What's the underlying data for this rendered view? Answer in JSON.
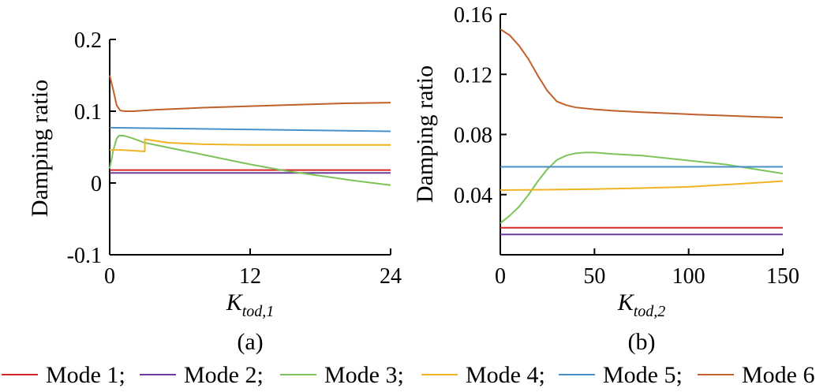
{
  "chart_data": [
    {
      "type": "line",
      "caption": "(a)",
      "xlabel": {
        "main": "K",
        "sub": "tod,1"
      },
      "ylabel": "Damping ratio",
      "xlim": [
        0,
        24
      ],
      "ylim": [
        -0.1,
        0.2
      ],
      "xticks": [
        0,
        12,
        24
      ],
      "xtick_labels": [
        "0",
        "12",
        "24"
      ],
      "yticks": [
        -0.1,
        0,
        0.1,
        0.2
      ],
      "ytick_labels": [
        "-0.1",
        "0",
        "0.1",
        "0.2"
      ],
      "series": [
        {
          "name": "Mode 1",
          "color": "#d62728",
          "x": [
            0,
            24
          ],
          "y": [
            0.018,
            0.018
          ]
        },
        {
          "name": "Mode 2",
          "color": "#6a3d9a",
          "x": [
            0,
            24
          ],
          "y": [
            0.014,
            0.014
          ]
        },
        {
          "name": "Mode 3",
          "color": "#7cc45a",
          "x": [
            0,
            0.3,
            0.6,
            0.8,
            1.2,
            2,
            3,
            6,
            9,
            12,
            15,
            18,
            21,
            24
          ],
          "y": [
            0.02,
            0.045,
            0.062,
            0.066,
            0.066,
            0.062,
            0.056,
            0.046,
            0.036,
            0.026,
            0.017,
            0.01,
            0.003,
            -0.003
          ]
        },
        {
          "name": "Mode 4",
          "color": "#f0b323",
          "x": [
            0,
            1,
            2,
            3,
            3.01,
            5,
            8,
            12,
            16,
            20,
            24
          ],
          "y": [
            0.046,
            0.046,
            0.045,
            0.044,
            0.061,
            0.056,
            0.054,
            0.053,
            0.053,
            0.053,
            0.053
          ]
        },
        {
          "name": "Mode 5",
          "color": "#4a90c8",
          "x": [
            0,
            24
          ],
          "y": [
            0.077,
            0.072
          ]
        },
        {
          "name": "Mode 6",
          "color": "#c1602b",
          "x": [
            0,
            0.3,
            0.6,
            0.9,
            1.3,
            2,
            4,
            8,
            12,
            16,
            20,
            24
          ],
          "y": [
            0.15,
            0.13,
            0.108,
            0.101,
            0.1,
            0.1,
            0.102,
            0.105,
            0.107,
            0.109,
            0.111,
            0.112
          ]
        }
      ]
    },
    {
      "type": "line",
      "caption": "(b)",
      "xlabel": {
        "main": "K",
        "sub": "tod,2"
      },
      "ylabel": "Damping ratio",
      "xlim": [
        0,
        150
      ],
      "ylim": [
        0,
        0.16
      ],
      "xticks": [
        0,
        50,
        100,
        150
      ],
      "xtick_labels": [
        "0",
        "50",
        "100",
        "150"
      ],
      "yticks": [
        0.04,
        0.08,
        0.12,
        0.16
      ],
      "ytick_labels": [
        "0.04",
        "0.08",
        "0.12",
        "0.16"
      ],
      "series": [
        {
          "name": "Mode 1",
          "color": "#d62728",
          "x": [
            0,
            150
          ],
          "y": [
            0.018,
            0.018
          ]
        },
        {
          "name": "Mode 2",
          "color": "#6a3d9a",
          "x": [
            0,
            150
          ],
          "y": [
            0.0135,
            0.0135
          ]
        },
        {
          "name": "Mode 3",
          "color": "#7cc45a",
          "x": [
            0,
            5,
            10,
            15,
            20,
            25,
            30,
            35,
            40,
            45,
            50,
            60,
            75,
            90,
            105,
            120,
            135,
            150
          ],
          "y": [
            0.021,
            0.026,
            0.032,
            0.04,
            0.049,
            0.057,
            0.063,
            0.066,
            0.0675,
            0.068,
            0.068,
            0.067,
            0.066,
            0.064,
            0.062,
            0.06,
            0.057,
            0.054
          ]
        },
        {
          "name": "Mode 4",
          "color": "#f0b323",
          "x": [
            0,
            25,
            50,
            75,
            100,
            125,
            150
          ],
          "y": [
            0.043,
            0.0433,
            0.0437,
            0.0443,
            0.0452,
            0.047,
            0.049
          ]
        },
        {
          "name": "Mode 5",
          "color": "#4a90c8",
          "x": [
            0,
            150
          ],
          "y": [
            0.0585,
            0.0585
          ]
        },
        {
          "name": "Mode 6",
          "color": "#c1602b",
          "x": [
            0,
            5,
            10,
            15,
            20,
            25,
            30,
            35,
            40,
            50,
            60,
            75,
            90,
            105,
            120,
            135,
            150
          ],
          "y": [
            0.15,
            0.146,
            0.139,
            0.13,
            0.119,
            0.109,
            0.102,
            0.0995,
            0.098,
            0.0967,
            0.0958,
            0.0948,
            0.094,
            0.0932,
            0.0925,
            0.0918,
            0.0912
          ]
        }
      ]
    }
  ],
  "legend": [
    {
      "label": "Mode 1;",
      "color": "#d62728"
    },
    {
      "label": "Mode 2;",
      "color": "#6a3d9a"
    },
    {
      "label": "Mode 3;",
      "color": "#7cc45a"
    },
    {
      "label": "Mode 4;",
      "color": "#f0b323"
    },
    {
      "label": "Mode 5;",
      "color": "#4a90c8"
    },
    {
      "label": "Mode 6",
      "color": "#c1602b"
    }
  ]
}
